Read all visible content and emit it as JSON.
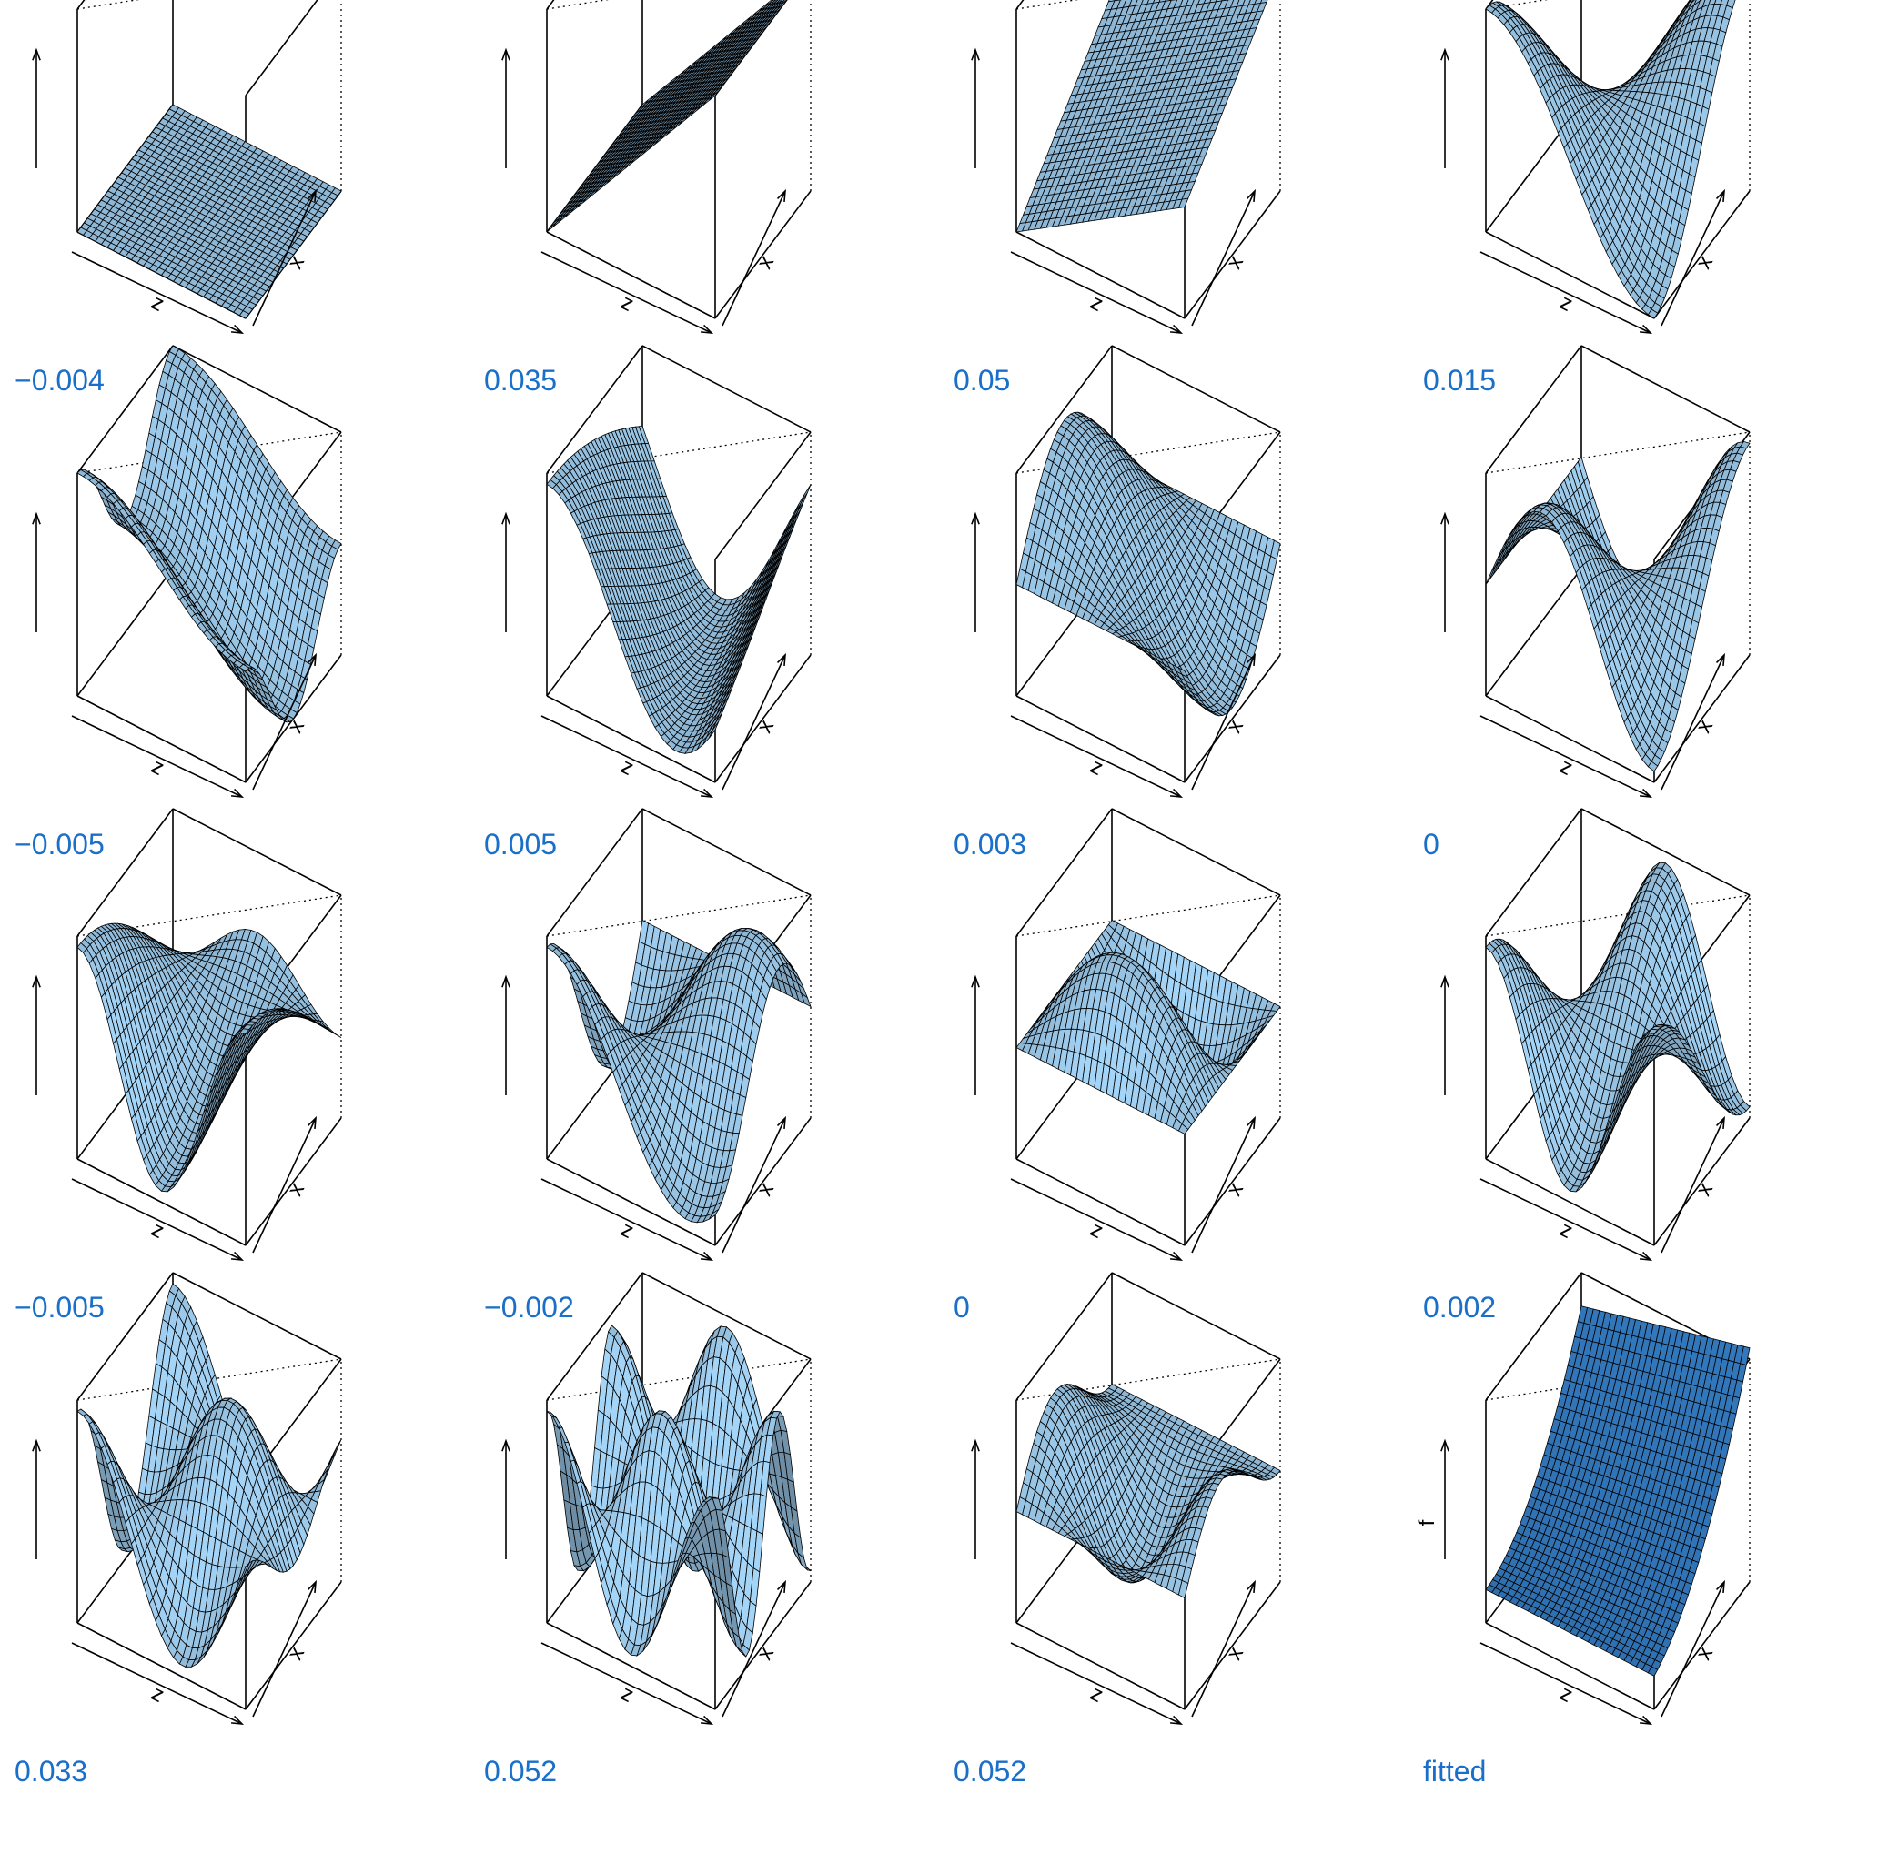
{
  "panels": [
    {
      "label": "−0.004",
      "surface": "flat"
    },
    {
      "label": "0.035",
      "surface": "plane-z"
    },
    {
      "label": "0.05",
      "surface": "diagonal"
    },
    {
      "label": "0.015",
      "surface": "saddle"
    },
    {
      "label": "−0.005",
      "surface": "bowl"
    },
    {
      "label": "0.005",
      "surface": "wave-z"
    },
    {
      "label": "0.003",
      "surface": "dome"
    },
    {
      "label": "0",
      "surface": "twist"
    },
    {
      "label": "−0.005",
      "surface": "wave2"
    },
    {
      "label": "−0.002",
      "surface": "ripple"
    },
    {
      "label": "0",
      "surface": "peaks"
    },
    {
      "label": "0.002",
      "surface": "dip"
    },
    {
      "label": "0.033",
      "surface": "bumps"
    },
    {
      "label": "0.052",
      "surface": "egg-crate"
    },
    {
      "label": "0.052",
      "surface": "hills"
    },
    {
      "label": "fitted",
      "surface": "fitted"
    }
  ],
  "axis_labels": {
    "z": "z",
    "x": "x",
    "f": "f"
  },
  "colors": {
    "surface": "#8fb8d6",
    "fitted_surface": "#2f6fae",
    "grid_line": "#000000",
    "label": "#1a6fc9"
  }
}
